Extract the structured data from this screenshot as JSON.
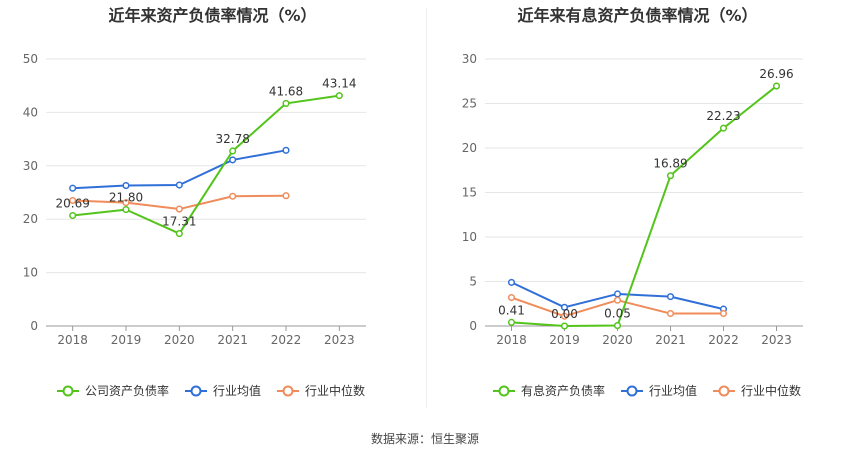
{
  "footer": {
    "source_label": "数据来源：",
    "source_name": "恒生聚源"
  },
  "chart_data": [
    {
      "type": "line",
      "title": "近年来资产负债率情况（%）",
      "xlabel": "",
      "ylabel": "",
      "x": [
        "2018",
        "2019",
        "2020",
        "2021",
        "2022",
        "2023"
      ],
      "ylim": [
        0,
        50
      ],
      "yticks": [
        0,
        10,
        20,
        30,
        40,
        50
      ],
      "grid": true,
      "legend_position": "bottom",
      "series": [
        {
          "name": "公司资产负债率",
          "color": "#52c41a",
          "values": [
            20.69,
            21.8,
            17.31,
            32.78,
            41.68,
            43.14
          ],
          "labels": [
            "20.69",
            "21.80",
            "17.31",
            "32.78",
            "41.68",
            "43.14"
          ]
        },
        {
          "name": "行业均值",
          "color": "#2f6fd8",
          "values": [
            25.8,
            26.3,
            26.4,
            31.1,
            32.9,
            null
          ]
        },
        {
          "name": "行业中位数",
          "color": "#f08b5a",
          "values": [
            23.5,
            23.1,
            21.9,
            24.3,
            24.4,
            null
          ]
        }
      ]
    },
    {
      "type": "line",
      "title": "近年来有息资产负债率情况（%）",
      "xlabel": "",
      "ylabel": "",
      "x": [
        "2018",
        "2019",
        "2020",
        "2021",
        "2022",
        "2023"
      ],
      "ylim": [
        0,
        30
      ],
      "yticks": [
        0,
        5,
        10,
        15,
        20,
        25,
        30
      ],
      "grid": true,
      "legend_position": "bottom",
      "series": [
        {
          "name": "有息资产负债率",
          "color": "#52c41a",
          "values": [
            0.41,
            0.0,
            0.05,
            16.89,
            22.23,
            26.96
          ],
          "labels": [
            "0.41",
            "0.00",
            "0.05",
            "16.89",
            "22.23",
            "26.96"
          ]
        },
        {
          "name": "行业均值",
          "color": "#2f6fd8",
          "values": [
            4.9,
            2.1,
            3.6,
            3.3,
            1.9,
            null
          ]
        },
        {
          "name": "行业中位数",
          "color": "#f08b5a",
          "values": [
            3.2,
            1.1,
            2.9,
            1.4,
            1.4,
            null
          ]
        }
      ]
    }
  ]
}
